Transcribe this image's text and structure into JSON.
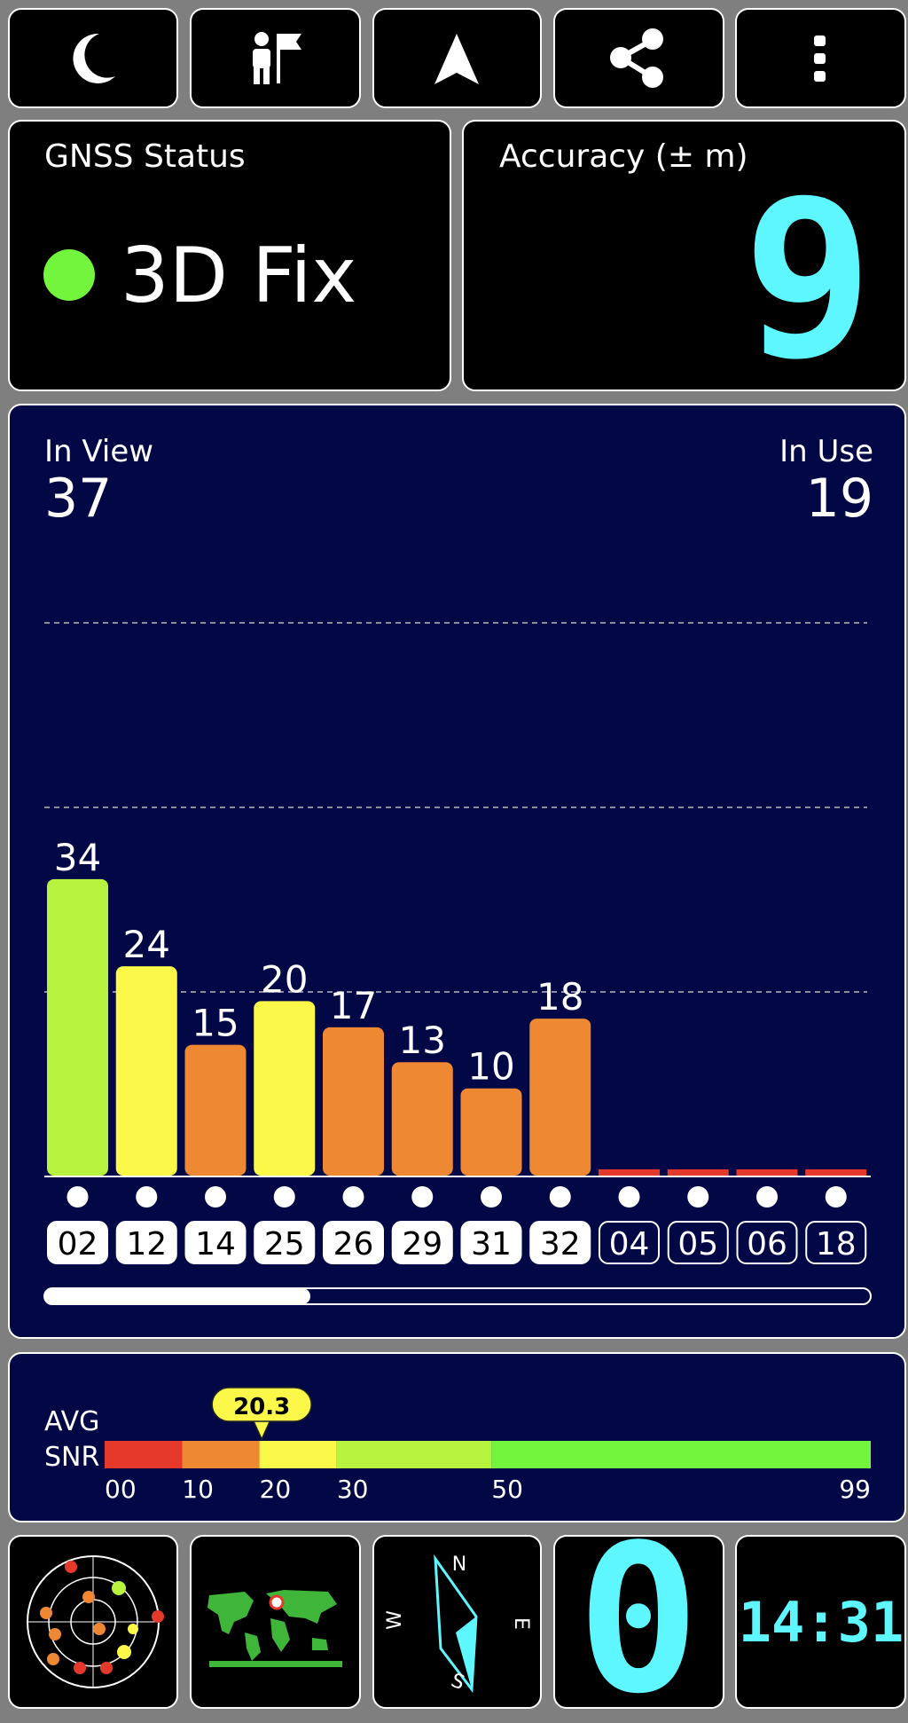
{
  "status": {
    "title": "GNSS Status",
    "value": "3D Fix"
  },
  "accuracy": {
    "title": "Accuracy (± m)",
    "value": 9
  },
  "satellites": {
    "in_view_label": "In View",
    "in_view": 37,
    "in_use_label": "In Use",
    "in_use": 19,
    "signal_chart": {
      "type": "bar",
      "categories": [
        "02",
        "12",
        "14",
        "25",
        "26",
        "29",
        "31",
        "32",
        "04",
        "05",
        "06",
        "18"
      ],
      "values": [
        34,
        24,
        15,
        20,
        17,
        13,
        10,
        18,
        null,
        null,
        null,
        null
      ],
      "colors": [
        "#b6f23e",
        "#fcf84a",
        "#ef8833",
        "#fcf84a",
        "#ef8833",
        "#ef8833",
        "#ef8833",
        "#ef8833",
        "#e5392b",
        "#e5392b",
        "#e5392b",
        "#e5392b"
      ],
      "used": [
        true,
        true,
        true,
        true,
        true,
        true,
        true,
        true,
        false,
        false,
        false,
        false
      ],
      "ylim": [
        0,
        70
      ]
    }
  },
  "snr": {
    "label_top": "AVG",
    "label_bottom": "SNR",
    "average": 20.3,
    "xlim": [
      0,
      99
    ],
    "xticks": [
      {
        "value": 0,
        "label": "00"
      },
      10,
      20,
      30,
      50,
      99
    ],
    "band_colors": [
      "#e5392b",
      "#ef8833",
      "#fcf84a",
      "#b6f23e",
      "#73f53e"
    ]
  },
  "compass": {
    "north": "N",
    "east": "E",
    "south": "S",
    "west": "W"
  },
  "tiles": {
    "speed": 0,
    "time": "14:31"
  }
}
